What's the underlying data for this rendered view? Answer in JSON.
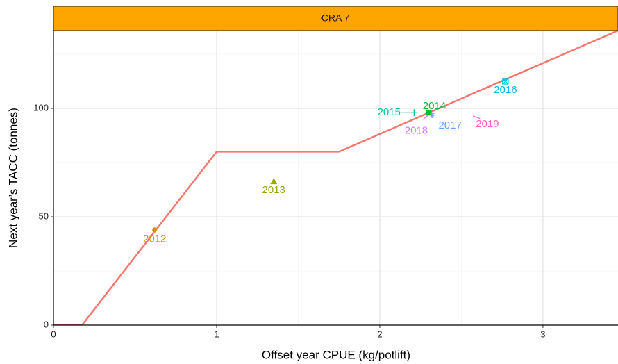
{
  "chart_data": {
    "type": "line",
    "strip_title": "CRA 7",
    "x_label": "Offset year CPUE (kg/potlift)",
    "y_label": "Next year’s TACC (tonnes)",
    "xlim": [
      0,
      3.46
    ],
    "ylim": [
      0,
      135.9
    ],
    "xticks": [
      0,
      1,
      2,
      3
    ],
    "yticks": [
      0,
      50,
      100
    ],
    "grid": true,
    "strip_color": "#FFA500",
    "rule": {
      "color": "#F8766D",
      "x": [
        0,
        0.175,
        1,
        1.75,
        3.46
      ],
      "y": [
        0,
        0,
        80,
        80,
        135.9
      ]
    },
    "points": [
      {
        "name": "2012",
        "color": "#D39200",
        "x": 0.62,
        "y": 44
      },
      {
        "name": "2013",
        "color": "#93AA00",
        "x": 1.35,
        "y": 66.3
      },
      {
        "name": "2014",
        "color": "#00BA38",
        "x": 2.3,
        "y": 98
      },
      {
        "name": "2015",
        "color": "#00C19F",
        "x": 2.21,
        "y": 98
      },
      {
        "name": "2016",
        "color": "#00B9E3",
        "x": 2.77,
        "y": 112.5
      },
      {
        "name": "2017",
        "color": "#619CFF",
        "x": 2.32,
        "y": 96.8
      },
      {
        "name": "2018",
        "color": "#DB72FB",
        "x": 2.3,
        "y": 97
      },
      {
        "name": "2019",
        "color": "#FF61C3",
        "x": 2.57,
        "y": 96.5
      }
    ]
  }
}
